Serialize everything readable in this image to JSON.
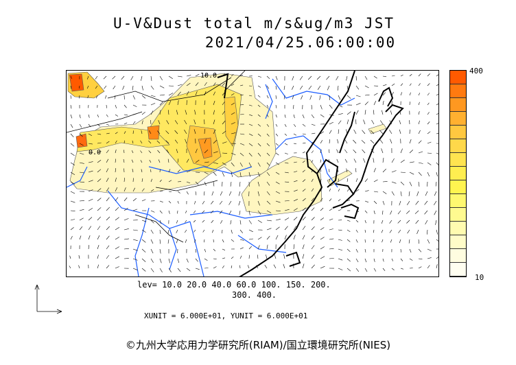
{
  "title": {
    "line1": "U-V&Dust total m/s&ug/m3 JST",
    "line2": "2021/04/25.06:00:00"
  },
  "map": {
    "contour_label": "10.0",
    "contour_label_2": "0.0"
  },
  "colorbar": {
    "max_label": "400",
    "min_label": "10",
    "colors": [
      "#ff5a00",
      "#ff7a10",
      "#ff9820",
      "#ffb030",
      "#ffc840",
      "#ffd84a",
      "#ffe450",
      "#ffee50",
      "#fff450",
      "#fff870",
      "#fffa90",
      "#fffbb0",
      "#fffcc8",
      "#fffde0",
      "#fffef0"
    ]
  },
  "legend": {
    "levels_line1": "lev= 10.0 20.0 40.0 60.0 100. 150. 200.",
    "levels_line2": "300. 400.",
    "units": "XUNIT = 6.000E+01, YUNIT = 6.000E+01"
  },
  "copyright": "©九州大学応用力学研究所(RIAM)/国立環境研究所(NIES)"
}
